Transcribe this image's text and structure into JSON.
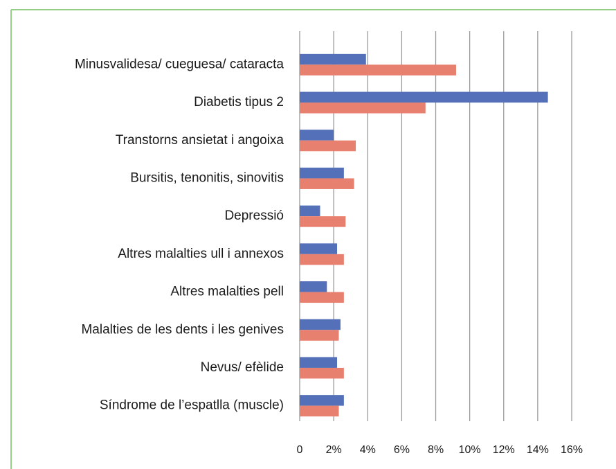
{
  "chart_data": {
    "type": "hbar",
    "categories": [
      "Minusvalidesa/ cueguesa/ cataracta",
      "Diabetis tipus 2",
      "Transtorns ansietat i angoixa",
      "Bursitis, tenonitis, sinovitis",
      "Depressió",
      "Altres malalties ull i annexos",
      "Altres malalties pell",
      "Malalties de les dents i les genives",
      "Nevus/ efèlide",
      "Síndrome de l’espatlla (muscle)"
    ],
    "series": [
      {
        "color": "#5470b8",
        "values": [
          3.9,
          14.6,
          2.0,
          2.6,
          1.2,
          2.2,
          1.6,
          2.4,
          2.2,
          2.6
        ]
      },
      {
        "color": "#e8806f",
        "values": [
          9.2,
          7.4,
          3.3,
          3.2,
          2.7,
          2.6,
          2.6,
          2.3,
          2.6,
          2.3
        ]
      }
    ],
    "xlim": [
      0,
      16
    ],
    "xticks": [
      0,
      {
        "value": 2,
        "label": "2%"
      },
      {
        "value": 4,
        "label": "4%"
      },
      {
        "value": 6,
        "label": "6%"
      },
      {
        "value": 8,
        "label": "8%"
      },
      {
        "value": 10,
        "label": "10%"
      },
      {
        "value": 12,
        "label": "12%"
      },
      {
        "value": 14,
        "label": "14%"
      },
      {
        "value": 16,
        "label": "16%"
      }
    ],
    "grid": true
  }
}
